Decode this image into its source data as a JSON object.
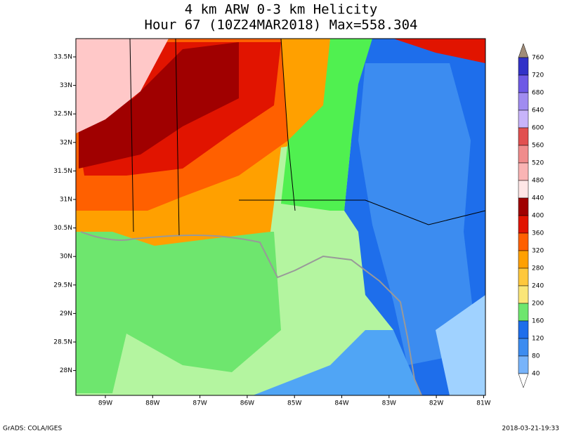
{
  "title": [
    "4 km ARW 0-3 km Helicity",
    "Hour 67 (10Z24MAR2018) Max=558.304"
  ],
  "lat_labels": [
    "33.5N",
    "33N",
    "32.5N",
    "32N",
    "31.5N",
    "31N",
    "30.5N",
    "30N",
    "29.5N",
    "29N",
    "28.5N",
    "28N"
  ],
  "lon_labels": [
    "89W",
    "88W",
    "87W",
    "86W",
    "85W",
    "84W",
    "83W",
    "82W",
    "81W"
  ],
  "colorbar_labels": [
    "760",
    "720",
    "680",
    "640",
    "600",
    "560",
    "520",
    "480",
    "440",
    "400",
    "360",
    "320",
    "280",
    "240",
    "200",
    "160",
    "120",
    "80",
    "40"
  ],
  "footer": {
    "left": "GrADS: COLA/IGES",
    "right": "2018-03-21-19:33"
  }
}
